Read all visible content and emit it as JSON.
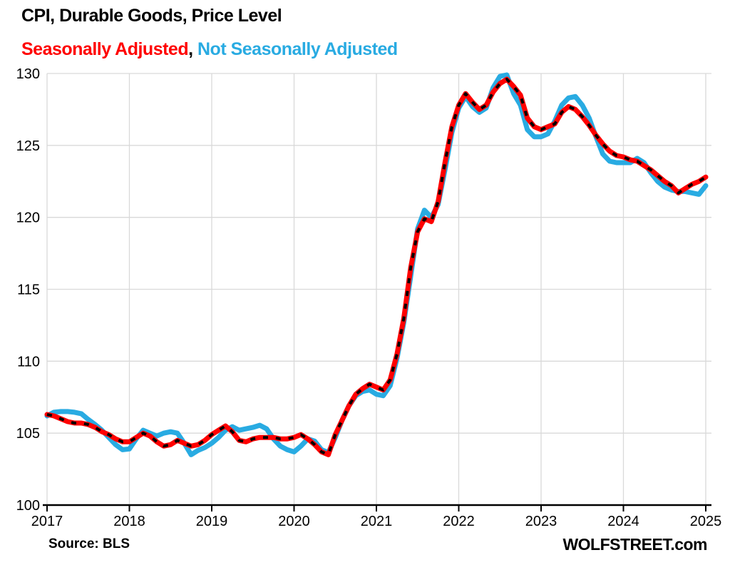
{
  "page": {
    "title": "CPI, Durable Goods, Price Level",
    "subtitle_sa": "Seasonally Adjusted",
    "subtitle_comma": ", ",
    "subtitle_nsa": "Not Seasonally Adjusted",
    "source": "Source: BLS",
    "branding": "WOLFSTREET.com"
  },
  "colors": {
    "sa_line": "#FF0000",
    "sa_dash_overlay": "#000000",
    "nsa_line": "#29ABE2",
    "grid": "#D9D9D9",
    "axis": "#000000",
    "tick_text": "#000000"
  },
  "chart_data": {
    "type": "line",
    "title": "CPI, Durable Goods, Price Level",
    "xlabel": "",
    "ylabel": "",
    "x_start_year": 2017,
    "x_step": "monthly",
    "x_ticks": [
      2017,
      2018,
      2019,
      2020,
      2021,
      2022,
      2023,
      2024,
      2025
    ],
    "y_ticks": [
      100,
      105,
      110,
      115,
      120,
      125,
      130
    ],
    "ylim": [
      100,
      130
    ],
    "xlim": [
      2017,
      2025.07
    ],
    "grid": true,
    "legend_position": "subtitle",
    "series": [
      {
        "name": "Seasonally Adjusted",
        "style": "red-with-black-dashes",
        "values": [
          106.3,
          106.2,
          106.0,
          105.8,
          105.7,
          105.7,
          105.6,
          105.4,
          105.1,
          104.9,
          104.6,
          104.4,
          104.4,
          104.7,
          105.0,
          104.8,
          104.4,
          104.1,
          104.2,
          104.5,
          104.3,
          104.1,
          104.2,
          104.5,
          104.9,
          105.2,
          105.5,
          105.1,
          104.5,
          104.4,
          104.6,
          104.7,
          104.7,
          104.7,
          104.6,
          104.6,
          104.7,
          104.9,
          104.6,
          104.2,
          103.7,
          103.5,
          104.9,
          105.9,
          106.9,
          107.7,
          108.1,
          108.4,
          108.2,
          108.0,
          108.7,
          110.5,
          113.0,
          116.5,
          119.0,
          119.9,
          119.7,
          121.1,
          123.8,
          126.3,
          127.8,
          128.6,
          128.0,
          127.5,
          127.8,
          128.7,
          129.3,
          129.6,
          129.1,
          128.5,
          126.9,
          126.3,
          126.1,
          126.3,
          126.5,
          127.3,
          127.7,
          127.5,
          127.0,
          126.4,
          125.7,
          125.1,
          124.6,
          124.3,
          124.2,
          124.0,
          123.9,
          123.6,
          123.3,
          122.9,
          122.5,
          122.2,
          121.7,
          122.0,
          122.3,
          122.5,
          122.8
        ]
      },
      {
        "name": "Not Seasonally Adjusted",
        "style": "solid-blue",
        "values": [
          106.2,
          106.45,
          106.5,
          106.5,
          106.45,
          106.35,
          105.95,
          105.6,
          105.2,
          104.7,
          104.2,
          103.85,
          103.9,
          104.6,
          105.2,
          105.0,
          104.8,
          105.0,
          105.1,
          105.0,
          104.3,
          103.5,
          103.8,
          104.0,
          104.3,
          104.7,
          105.2,
          105.45,
          105.2,
          105.3,
          105.4,
          105.55,
          105.3,
          104.6,
          104.1,
          103.85,
          103.7,
          104.1,
          104.6,
          104.45,
          103.85,
          103.65,
          104.7,
          105.9,
          106.9,
          107.6,
          107.9,
          108.0,
          107.7,
          107.6,
          108.3,
          110.2,
          112.7,
          115.9,
          119.2,
          120.5,
          120.0,
          120.9,
          123.3,
          125.9,
          127.6,
          128.4,
          127.7,
          127.3,
          127.6,
          129.0,
          129.8,
          129.9,
          128.6,
          127.8,
          126.1,
          125.6,
          125.6,
          125.8,
          126.7,
          127.8,
          128.3,
          128.4,
          127.8,
          126.9,
          125.6,
          124.4,
          123.9,
          123.8,
          123.8,
          123.8,
          124.1,
          123.8,
          123.1,
          122.5,
          122.1,
          121.9,
          121.8,
          121.8,
          121.7,
          121.6,
          122.2
        ]
      }
    ]
  }
}
